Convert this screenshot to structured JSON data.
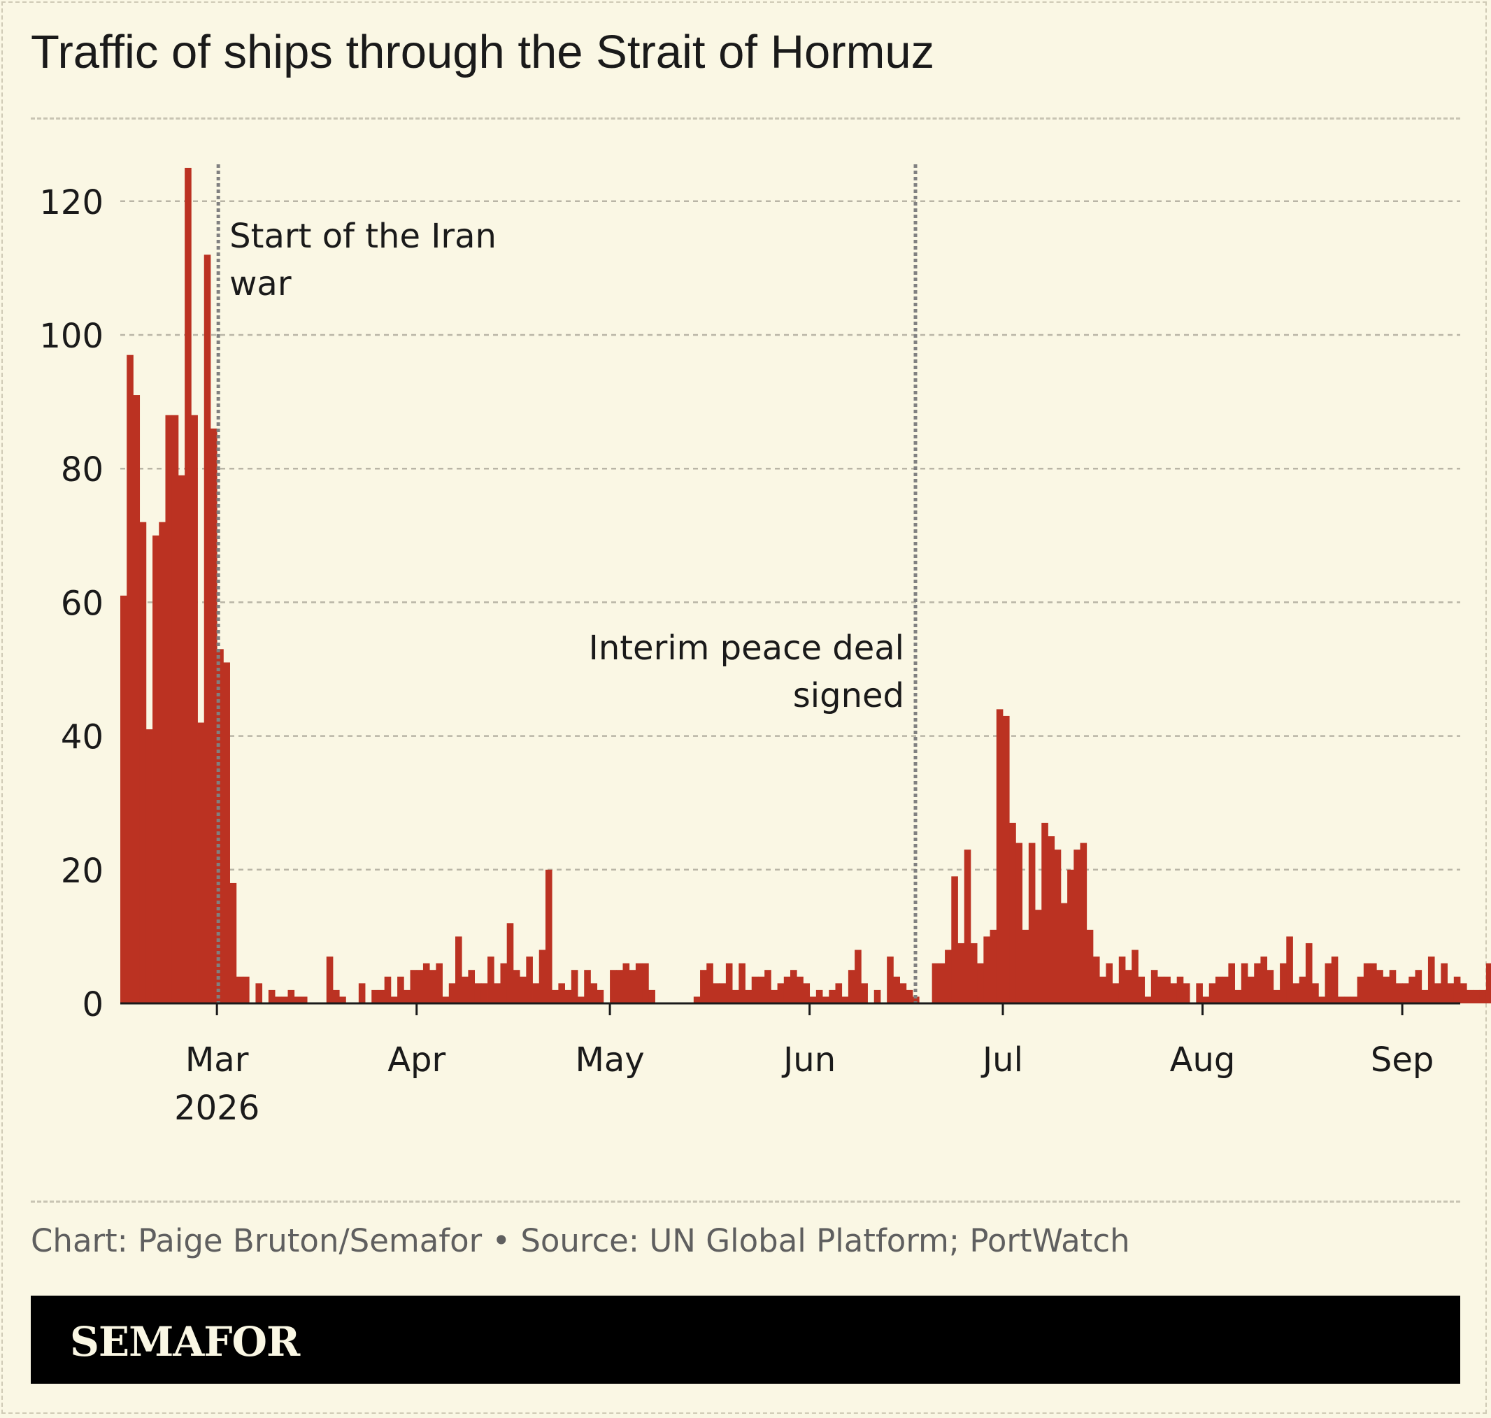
{
  "title": "Traffic of ships through the Strait of Hormuz",
  "credit": "Chart: Paige Bruton/Semafor • Source: UN Global Platform; PortWatch",
  "brand": "SEMAFOR",
  "colors": {
    "background": "#faf7e4",
    "bar": "#bb3222",
    "grid": "#b9b5a6",
    "annotation_line": "#808080",
    "text": "#1a1a1a"
  },
  "chart_data": {
    "type": "bar",
    "ylim": [
      0,
      125
    ],
    "yticks": [
      0,
      20,
      40,
      60,
      80,
      100,
      120
    ],
    "xlim": [
      "2026-02-14",
      "2026-09-10"
    ],
    "xticks": [
      {
        "date": "2026-03-01",
        "label": "Mar",
        "sublabel": "2026"
      },
      {
        "date": "2026-04-01",
        "label": "Apr"
      },
      {
        "date": "2026-05-01",
        "label": "May"
      },
      {
        "date": "2026-06-01",
        "label": "Jun"
      },
      {
        "date": "2026-07-01",
        "label": "Jul"
      },
      {
        "date": "2026-08-01",
        "label": "Aug"
      },
      {
        "date": "2026-09-01",
        "label": "Sep"
      }
    ],
    "grid": true,
    "annotations": [
      {
        "date": "2026-03-01",
        "lines": [
          "Start of the Iran",
          "war"
        ],
        "side": "right"
      },
      {
        "date": "2026-06-17",
        "lines": [
          "Interim peace deal",
          "signed"
        ],
        "side": "left"
      }
    ],
    "start_date": "2026-02-14",
    "values": [
      61,
      97,
      91,
      72,
      41,
      70,
      72,
      88,
      88,
      79,
      125,
      88,
      42,
      112,
      86,
      53,
      51,
      18,
      4,
      4,
      0,
      3,
      0,
      2,
      1,
      1,
      2,
      1,
      1,
      0,
      0,
      0,
      7,
      2,
      1,
      0,
      0,
      3,
      0,
      2,
      2,
      4,
      1,
      4,
      2,
      5,
      5,
      6,
      5,
      6,
      1,
      3,
      10,
      4,
      5,
      3,
      3,
      7,
      3,
      6,
      12,
      5,
      4,
      7,
      3,
      8,
      20,
      2,
      3,
      2,
      5,
      1,
      5,
      3,
      2,
      0,
      5,
      5,
      6,
      5,
      6,
      6,
      2,
      0,
      0,
      0,
      0,
      0,
      0,
      1,
      5,
      6,
      3,
      3,
      6,
      2,
      6,
      2,
      4,
      4,
      5,
      2,
      3,
      4,
      5,
      4,
      3,
      1,
      2,
      1,
      2,
      3,
      1,
      5,
      8,
      3,
      0,
      2,
      0,
      7,
      4,
      3,
      2,
      1,
      0,
      0,
      6,
      6,
      8,
      19,
      9,
      23,
      9,
      6,
      10,
      11,
      44,
      43,
      27,
      24,
      11,
      24,
      14,
      27,
      25,
      23,
      15,
      20,
      23,
      24,
      11,
      7,
      4,
      6,
      3,
      7,
      5,
      8,
      4,
      1,
      5,
      4,
      4,
      3,
      4,
      3,
      0,
      3,
      1,
      3,
      4,
      4,
      6,
      2,
      6,
      4,
      6,
      7,
      5,
      2,
      6,
      10,
      3,
      4,
      9,
      3,
      1,
      6,
      7,
      1,
      1,
      1,
      4,
      6,
      6,
      5,
      4,
      5,
      3,
      3,
      4,
      5,
      2,
      7,
      3,
      6,
      3,
      4,
      3,
      2,
      2,
      2,
      6
    ]
  }
}
